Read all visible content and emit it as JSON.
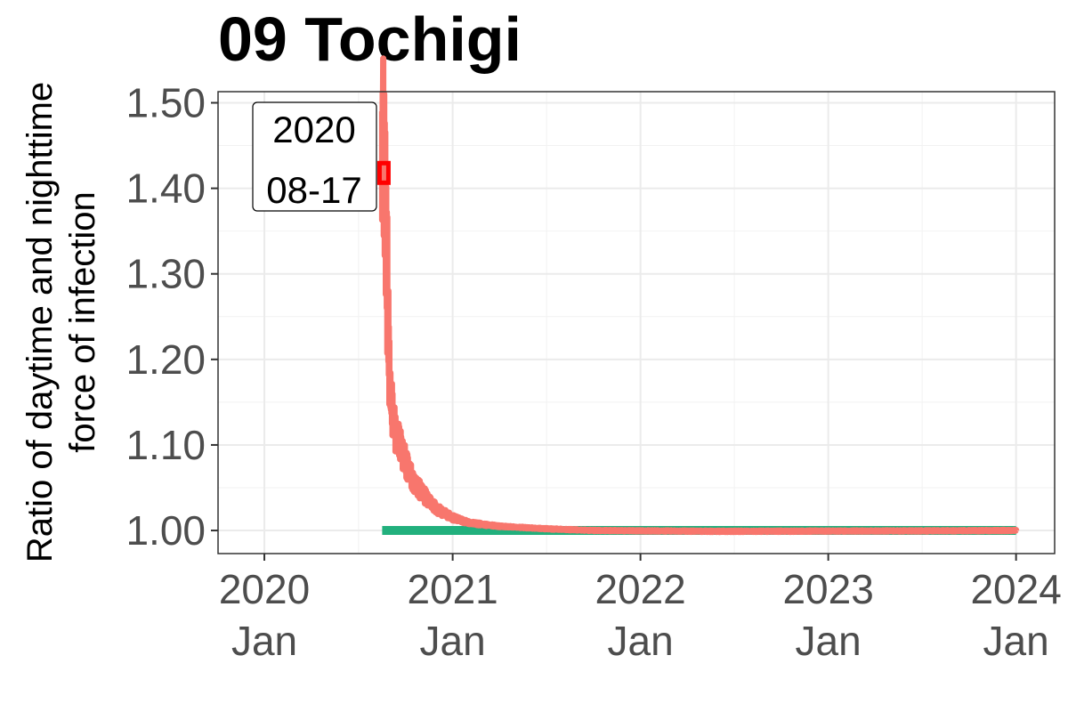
{
  "chart_data": {
    "type": "line",
    "title": "09 Tochigi",
    "ylabel_lines": [
      "Ratio of daytime and nighttime",
      "force of infection"
    ],
    "xlabel": "",
    "ylim": [
      0.973,
      1.513
    ],
    "yticks": [
      1.0,
      1.1,
      1.2,
      1.3,
      1.4,
      1.5
    ],
    "ytick_labels": [
      "1.00",
      "1.10",
      "1.20",
      "1.30",
      "1.40",
      "1.50"
    ],
    "xlim": [
      "2019-10-03",
      "2024-03-16"
    ],
    "xticks": [
      {
        "date": "2020-01-01",
        "year": "2020",
        "month": "Jan"
      },
      {
        "date": "2021-01-01",
        "year": "2021",
        "month": "Jan"
      },
      {
        "date": "2022-01-01",
        "year": "2022",
        "month": "Jan"
      },
      {
        "date": "2023-01-01",
        "year": "2023",
        "month": "Jan"
      },
      {
        "date": "2024-01-01",
        "year": "2024",
        "month": "Jan"
      }
    ],
    "grid": true,
    "legend": "none",
    "annotation": {
      "line1": "2020",
      "line2": "08-17",
      "date": "2020-08-17",
      "value": 1.418,
      "marker_color": "#ff0000"
    },
    "series": [
      {
        "color": "#f8766d",
        "style": "noisy-band",
        "points": [
          [
            "2020-08-17",
            1.49
          ],
          [
            "2020-08-20",
            1.44
          ],
          [
            "2020-08-25",
            1.33
          ],
          [
            "2020-09-01",
            1.16
          ],
          [
            "2020-09-10",
            1.12
          ],
          [
            "2020-09-20",
            1.1
          ],
          [
            "2020-10-01",
            1.08
          ],
          [
            "2020-10-15",
            1.06
          ],
          [
            "2020-11-01",
            1.045
          ],
          [
            "2020-12-01",
            1.025
          ],
          [
            "2021-01-01",
            1.015
          ],
          [
            "2021-02-01",
            1.009
          ],
          [
            "2021-04-01",
            1.005
          ],
          [
            "2021-07-01",
            1.002
          ],
          [
            "2021-10-01",
            1.0
          ],
          [
            "2022-06-01",
            0.999
          ],
          [
            "2023-06-01",
            0.9995
          ],
          [
            "2024-01-01",
            1.0
          ]
        ]
      },
      {
        "color": "#22b07d",
        "style": "flat",
        "points": [
          [
            "2020-08-17",
            1.0
          ],
          [
            "2024-01-01",
            1.0
          ]
        ]
      }
    ]
  }
}
